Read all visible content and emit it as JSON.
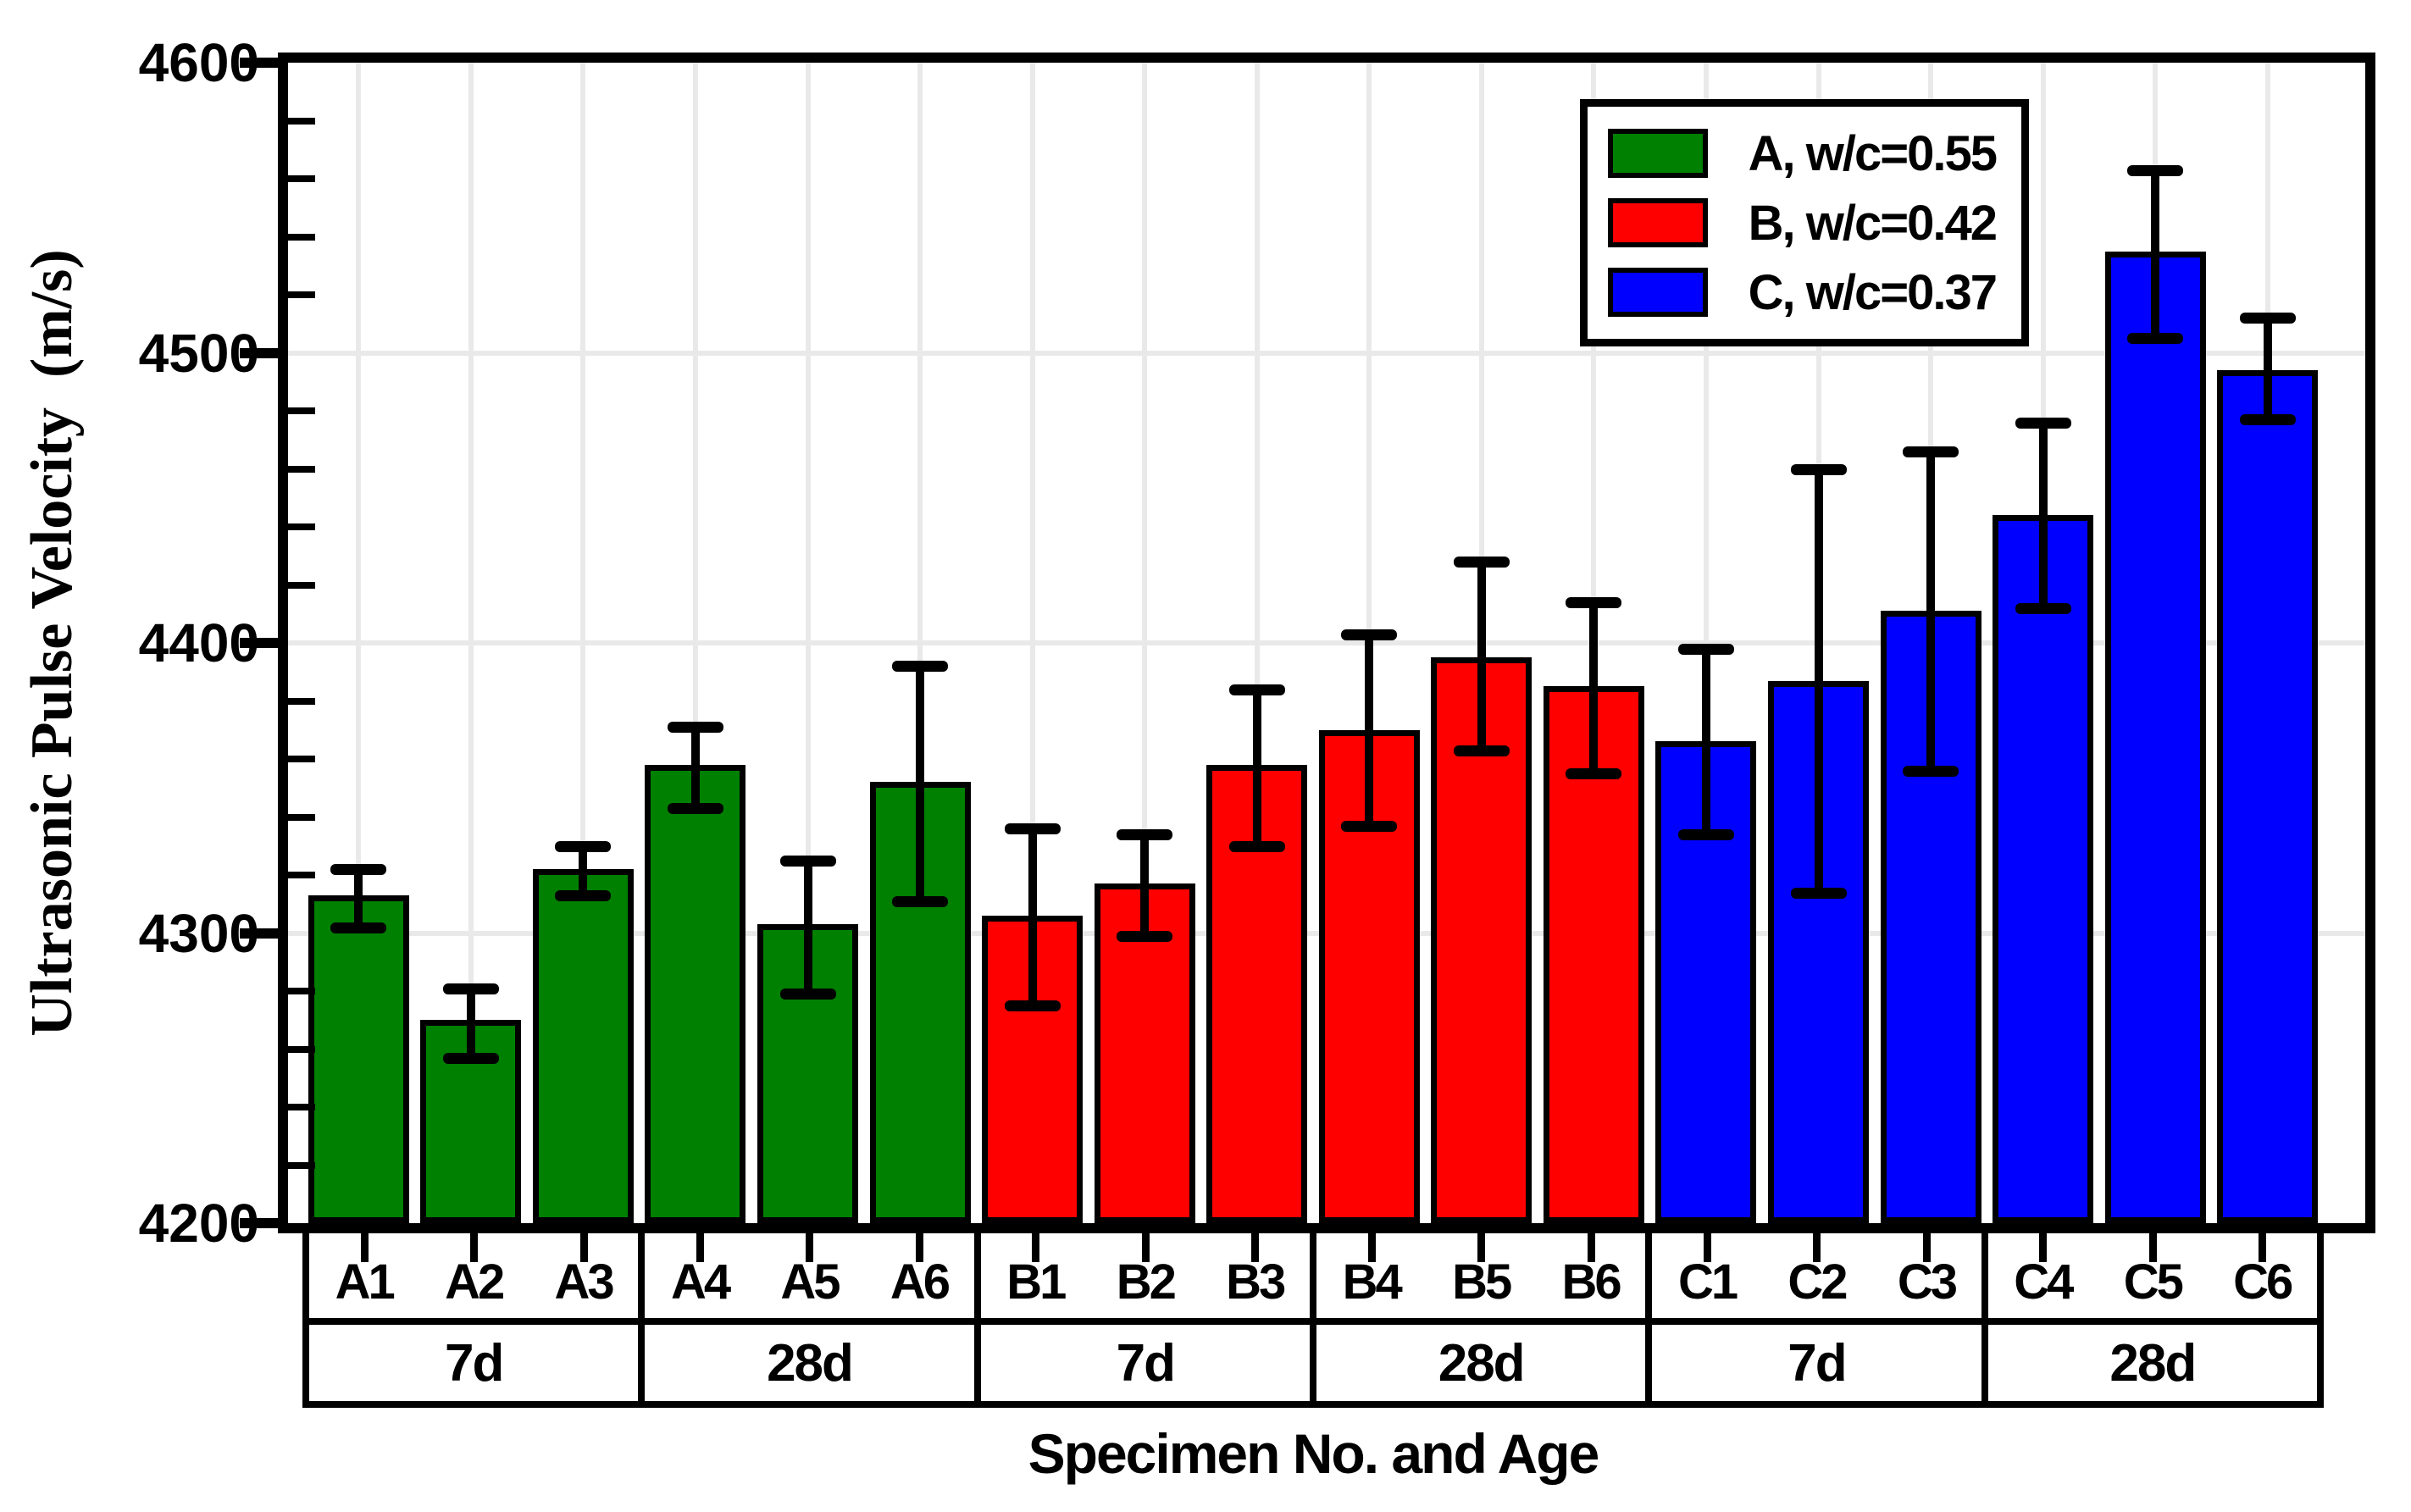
{
  "chart_data": {
    "type": "bar",
    "title": "",
    "xlabel": "Specimen No. and Age",
    "ylabel": "Ultrasonic Pulse Velocity  (m/s)",
    "ylim": [
      4200,
      4600
    ],
    "y_major_ticks": [
      4200,
      4300,
      4400,
      4500,
      4600
    ],
    "y_minor_step": 20,
    "grid": true,
    "grid_color": "#e9e9e9",
    "legend_position": "top-right",
    "series": [
      {
        "key": "A",
        "label": "A, w/c=0.55",
        "color": "#008000"
      },
      {
        "key": "B",
        "label": "B, w/c=0.42",
        "color": "#ff0000"
      },
      {
        "key": "C",
        "label": "C, w/c=0.37",
        "color": "#0000ff"
      }
    ],
    "categories": [
      "A1",
      "A2",
      "A3",
      "A4",
      "A5",
      "A6",
      "B1",
      "B2",
      "B3",
      "B4",
      "B5",
      "B6",
      "C1",
      "C2",
      "C3",
      "C4",
      "C5",
      "C6"
    ],
    "bars": [
      {
        "label": "A1",
        "series": "A",
        "value": 4313,
        "err_low": 4302,
        "err_high": 4322
      },
      {
        "label": "A2",
        "series": "A",
        "value": 4270,
        "err_low": 4257,
        "err_high": 4281
      },
      {
        "label": "A3",
        "series": "A",
        "value": 4322,
        "err_low": 4313,
        "err_high": 4330
      },
      {
        "label": "A4",
        "series": "A",
        "value": 4358,
        "err_low": 4343,
        "err_high": 4371
      },
      {
        "label": "A5",
        "series": "A",
        "value": 4303,
        "err_low": 4279,
        "err_high": 4325
      },
      {
        "label": "A6",
        "series": "A",
        "value": 4352,
        "err_low": 4311,
        "err_high": 4392
      },
      {
        "label": "B1",
        "series": "B",
        "value": 4306,
        "err_low": 4275,
        "err_high": 4336
      },
      {
        "label": "B2",
        "series": "B",
        "value": 4317,
        "err_low": 4299,
        "err_high": 4334
      },
      {
        "label": "B3",
        "series": "B",
        "value": 4358,
        "err_low": 4330,
        "err_high": 4384
      },
      {
        "label": "B4",
        "series": "B",
        "value": 4370,
        "err_low": 4337,
        "err_high": 4403
      },
      {
        "label": "B5",
        "series": "B",
        "value": 4395,
        "err_low": 4363,
        "err_high": 4428
      },
      {
        "label": "B6",
        "series": "B",
        "value": 4385,
        "err_low": 4355,
        "err_high": 4414
      },
      {
        "label": "C1",
        "series": "C",
        "value": 4366,
        "err_low": 4334,
        "err_high": 4398
      },
      {
        "label": "C2",
        "series": "C",
        "value": 4387,
        "err_low": 4314,
        "err_high": 4460
      },
      {
        "label": "C3",
        "series": "C",
        "value": 4411,
        "err_low": 4356,
        "err_high": 4466
      },
      {
        "label": "C4",
        "series": "C",
        "value": 4444,
        "err_low": 4412,
        "err_high": 4476
      },
      {
        "label": "C5",
        "series": "C",
        "value": 4535,
        "err_low": 4505,
        "err_high": 4563
      },
      {
        "label": "C6",
        "series": "C",
        "value": 4494,
        "err_low": 4477,
        "err_high": 4512
      }
    ],
    "age_groups": [
      {
        "label": "7d",
        "span": 3
      },
      {
        "label": "28d",
        "span": 3
      },
      {
        "label": "7d",
        "span": 3
      },
      {
        "label": "28d",
        "span": 3
      },
      {
        "label": "7d",
        "span": 3
      },
      {
        "label": "28d",
        "span": 3
      }
    ]
  },
  "axes": {
    "x_title": "Specimen No. and Age",
    "y_title": "Ultrasonic Pulse Velocity  (m/s)"
  },
  "legend": {
    "entries": [
      {
        "label": "A, w/c=0.55",
        "color": "#008000"
      },
      {
        "label": "B, w/c=0.42",
        "color": "#ff0000"
      },
      {
        "label": "C, w/c=0.37",
        "color": "#0000ff"
      }
    ]
  }
}
